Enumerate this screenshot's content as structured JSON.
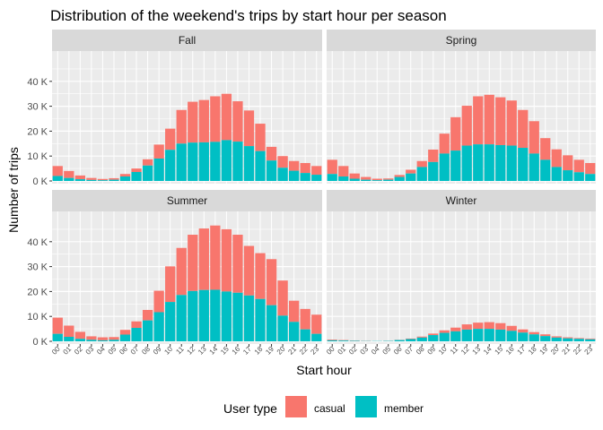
{
  "chart_data": {
    "type": "bar",
    "stacked": true,
    "faceted": true,
    "title": "Distribution of the weekend's trips by start hour per season",
    "xlabel": "Start hour",
    "ylabel": "Number of trips",
    "ylim": [
      0,
      50000
    ],
    "yticks": [
      0,
      10000,
      20000,
      30000,
      40000
    ],
    "ytick_labels": [
      "0 K",
      "10 K",
      "20 K",
      "30 K",
      "40 K"
    ],
    "grid": true,
    "legend": {
      "title": "User type",
      "position": "bottom",
      "entries": [
        "casual",
        "member"
      ]
    },
    "colors": {
      "casual": "#F8766D",
      "member": "#00BFC4",
      "panel_bg": "#EBEBEB",
      "strip_bg": "#D9D9D9",
      "grid": "#FFFFFF"
    },
    "categories": [
      "00",
      "01",
      "02",
      "03",
      "04",
      "05",
      "06",
      "07",
      "08",
      "09",
      "10",
      "11",
      "12",
      "13",
      "14",
      "15",
      "16",
      "17",
      "18",
      "19",
      "20",
      "21",
      "22",
      "23"
    ],
    "facets": [
      {
        "name": "Fall",
        "member": [
          2000,
          1200,
          700,
          400,
          300,
          500,
          1800,
          3600,
          6200,
          9000,
          12500,
          15000,
          15400,
          15500,
          15700,
          16400,
          15800,
          14000,
          12000,
          8200,
          5300,
          4100,
          3200,
          2500
        ],
        "total": [
          6000,
          4000,
          2200,
          1200,
          800,
          1100,
          2800,
          5000,
          8700,
          14600,
          21000,
          28500,
          31800,
          32500,
          34000,
          35000,
          32000,
          28300,
          23000,
          13700,
          10000,
          8000,
          7200,
          6000
        ]
      },
      {
        "name": "Spring",
        "member": [
          2800,
          1800,
          900,
          500,
          300,
          500,
          1600,
          3000,
          5600,
          7600,
          11000,
          12200,
          14200,
          14700,
          14700,
          14400,
          14200,
          13300,
          11000,
          8500,
          5600,
          4300,
          3500,
          2800
        ],
        "total": [
          8500,
          6000,
          3000,
          1600,
          900,
          1000,
          2400,
          4500,
          8000,
          12600,
          19000,
          25600,
          30200,
          34000,
          34600,
          33600,
          32300,
          28500,
          24000,
          17200,
          12700,
          10300,
          8500,
          7200
        ]
      },
      {
        "name": "Summer",
        "member": [
          3000,
          1800,
          1000,
          600,
          400,
          600,
          2700,
          5400,
          8400,
          11700,
          15800,
          18600,
          20200,
          20600,
          20700,
          20000,
          19500,
          18400,
          17000,
          14500,
          10300,
          7800,
          4800,
          3000
        ],
        "total": [
          9500,
          6300,
          3800,
          2000,
          1600,
          1700,
          4600,
          8000,
          12600,
          20300,
          30100,
          37500,
          42800,
          45300,
          46500,
          45000,
          42800,
          38300,
          35400,
          33000,
          24400,
          16300,
          13000,
          10700
        ]
      },
      {
        "name": "Winter",
        "member": [
          400,
          300,
          200,
          100,
          100,
          150,
          500,
          900,
          1500,
          2500,
          3400,
          4000,
          4700,
          5000,
          5000,
          4700,
          4200,
          3500,
          2800,
          2100,
          1500,
          1200,
          1000,
          800
        ],
        "total": [
          700,
          500,
          300,
          200,
          100,
          200,
          600,
          1100,
          1900,
          3100,
          4400,
          5500,
          6800,
          7500,
          7700,
          7300,
          6200,
          4800,
          3700,
          2800,
          2000,
          1600,
          1300,
          1100
        ]
      }
    ]
  }
}
